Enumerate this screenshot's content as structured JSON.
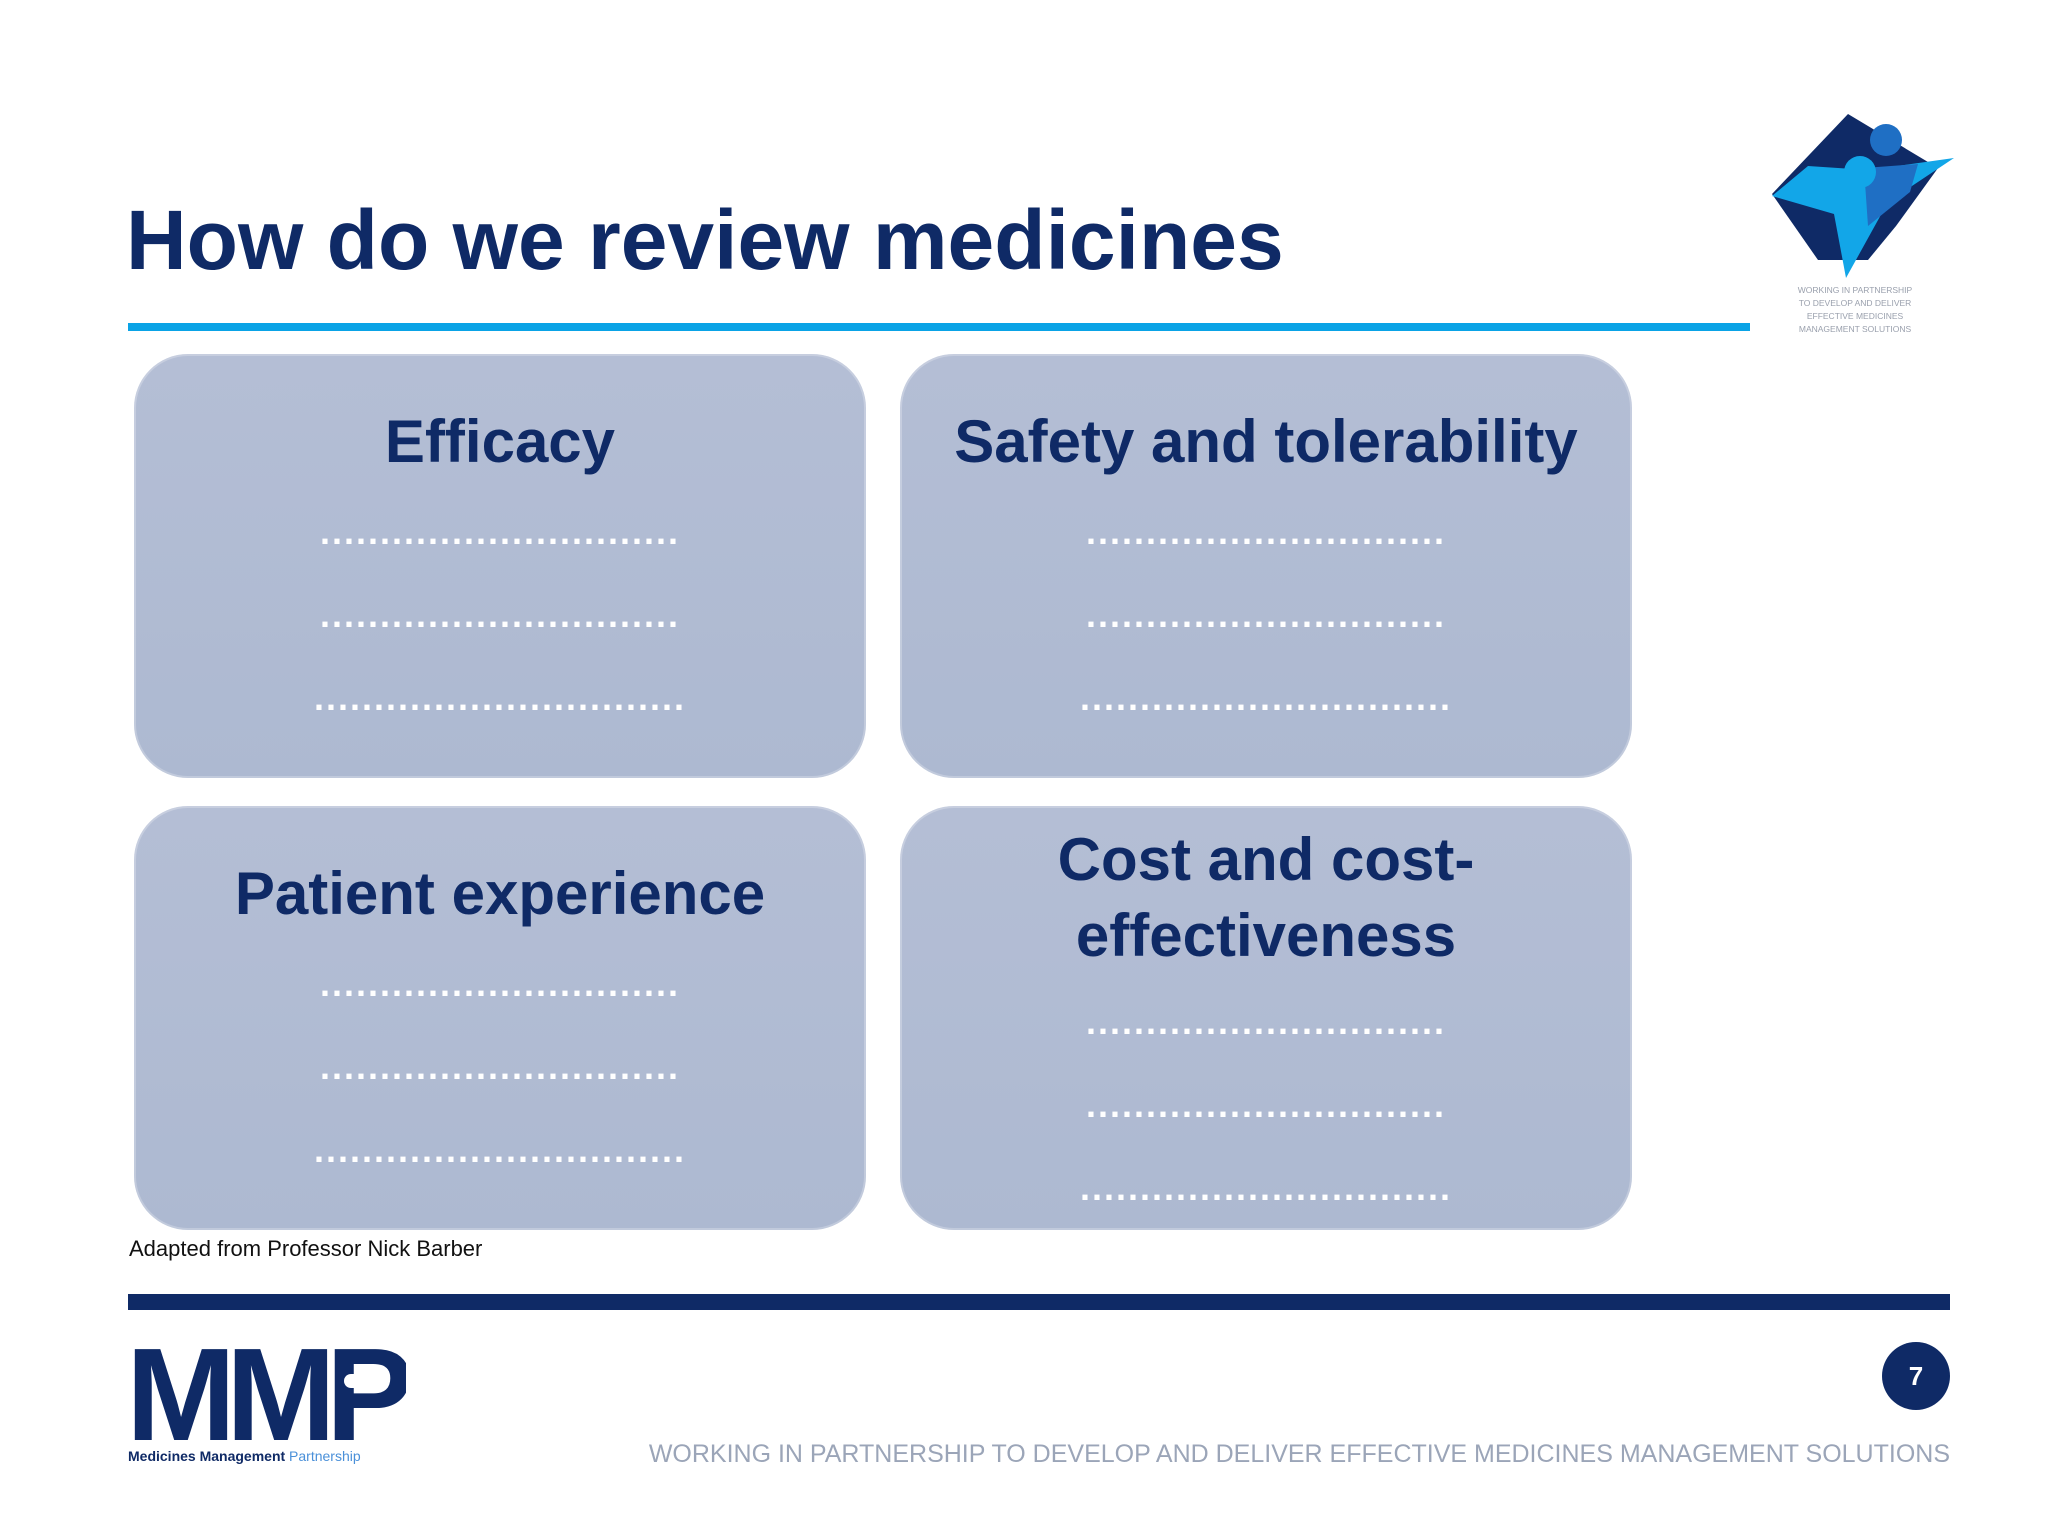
{
  "slide": {
    "title": "How do we review medicines",
    "credit": "Adapted from Professor Nick Barber",
    "page_number": "7",
    "footer_tagline": "WORKING IN PARTNERSHIP TO DEVELOP AND DELIVER EFFECTIVE MEDICINES MANAGEMENT SOLUTIONS"
  },
  "header_logo": {
    "tagline_lines": [
      "Working in partnership",
      "to develop and deliver",
      "effective medicines",
      "management solutions"
    ],
    "colors": {
      "dark": "#0f2a66",
      "mid": "#1f6fc4",
      "light": "#12a6e8"
    }
  },
  "cards": [
    {
      "title_lines": [
        "Efficacy"
      ],
      "dot_lines": [
        "..............................",
        "..............................",
        "..............................."
      ]
    },
    {
      "title_lines": [
        "Safety and tolerability"
      ],
      "dot_lines": [
        "..............................",
        "..............................",
        "..............................."
      ]
    },
    {
      "title_lines": [
        "Patient experience"
      ],
      "dot_lines": [
        "..............................",
        "..............................",
        "..............................."
      ]
    },
    {
      "title_lines": [
        "Cost and cost-",
        "effectiveness"
      ],
      "dot_lines": [
        "..............................",
        "..............................",
        "..............................."
      ]
    }
  ],
  "footer_logo": {
    "letters": "MMP",
    "name_bold": "Medicines Management",
    "name_light": "Partnership"
  },
  "colors": {
    "navy": "#0f2a66",
    "accent_blue": "#0aa3e6",
    "card_fill": "#b0bbd3"
  }
}
